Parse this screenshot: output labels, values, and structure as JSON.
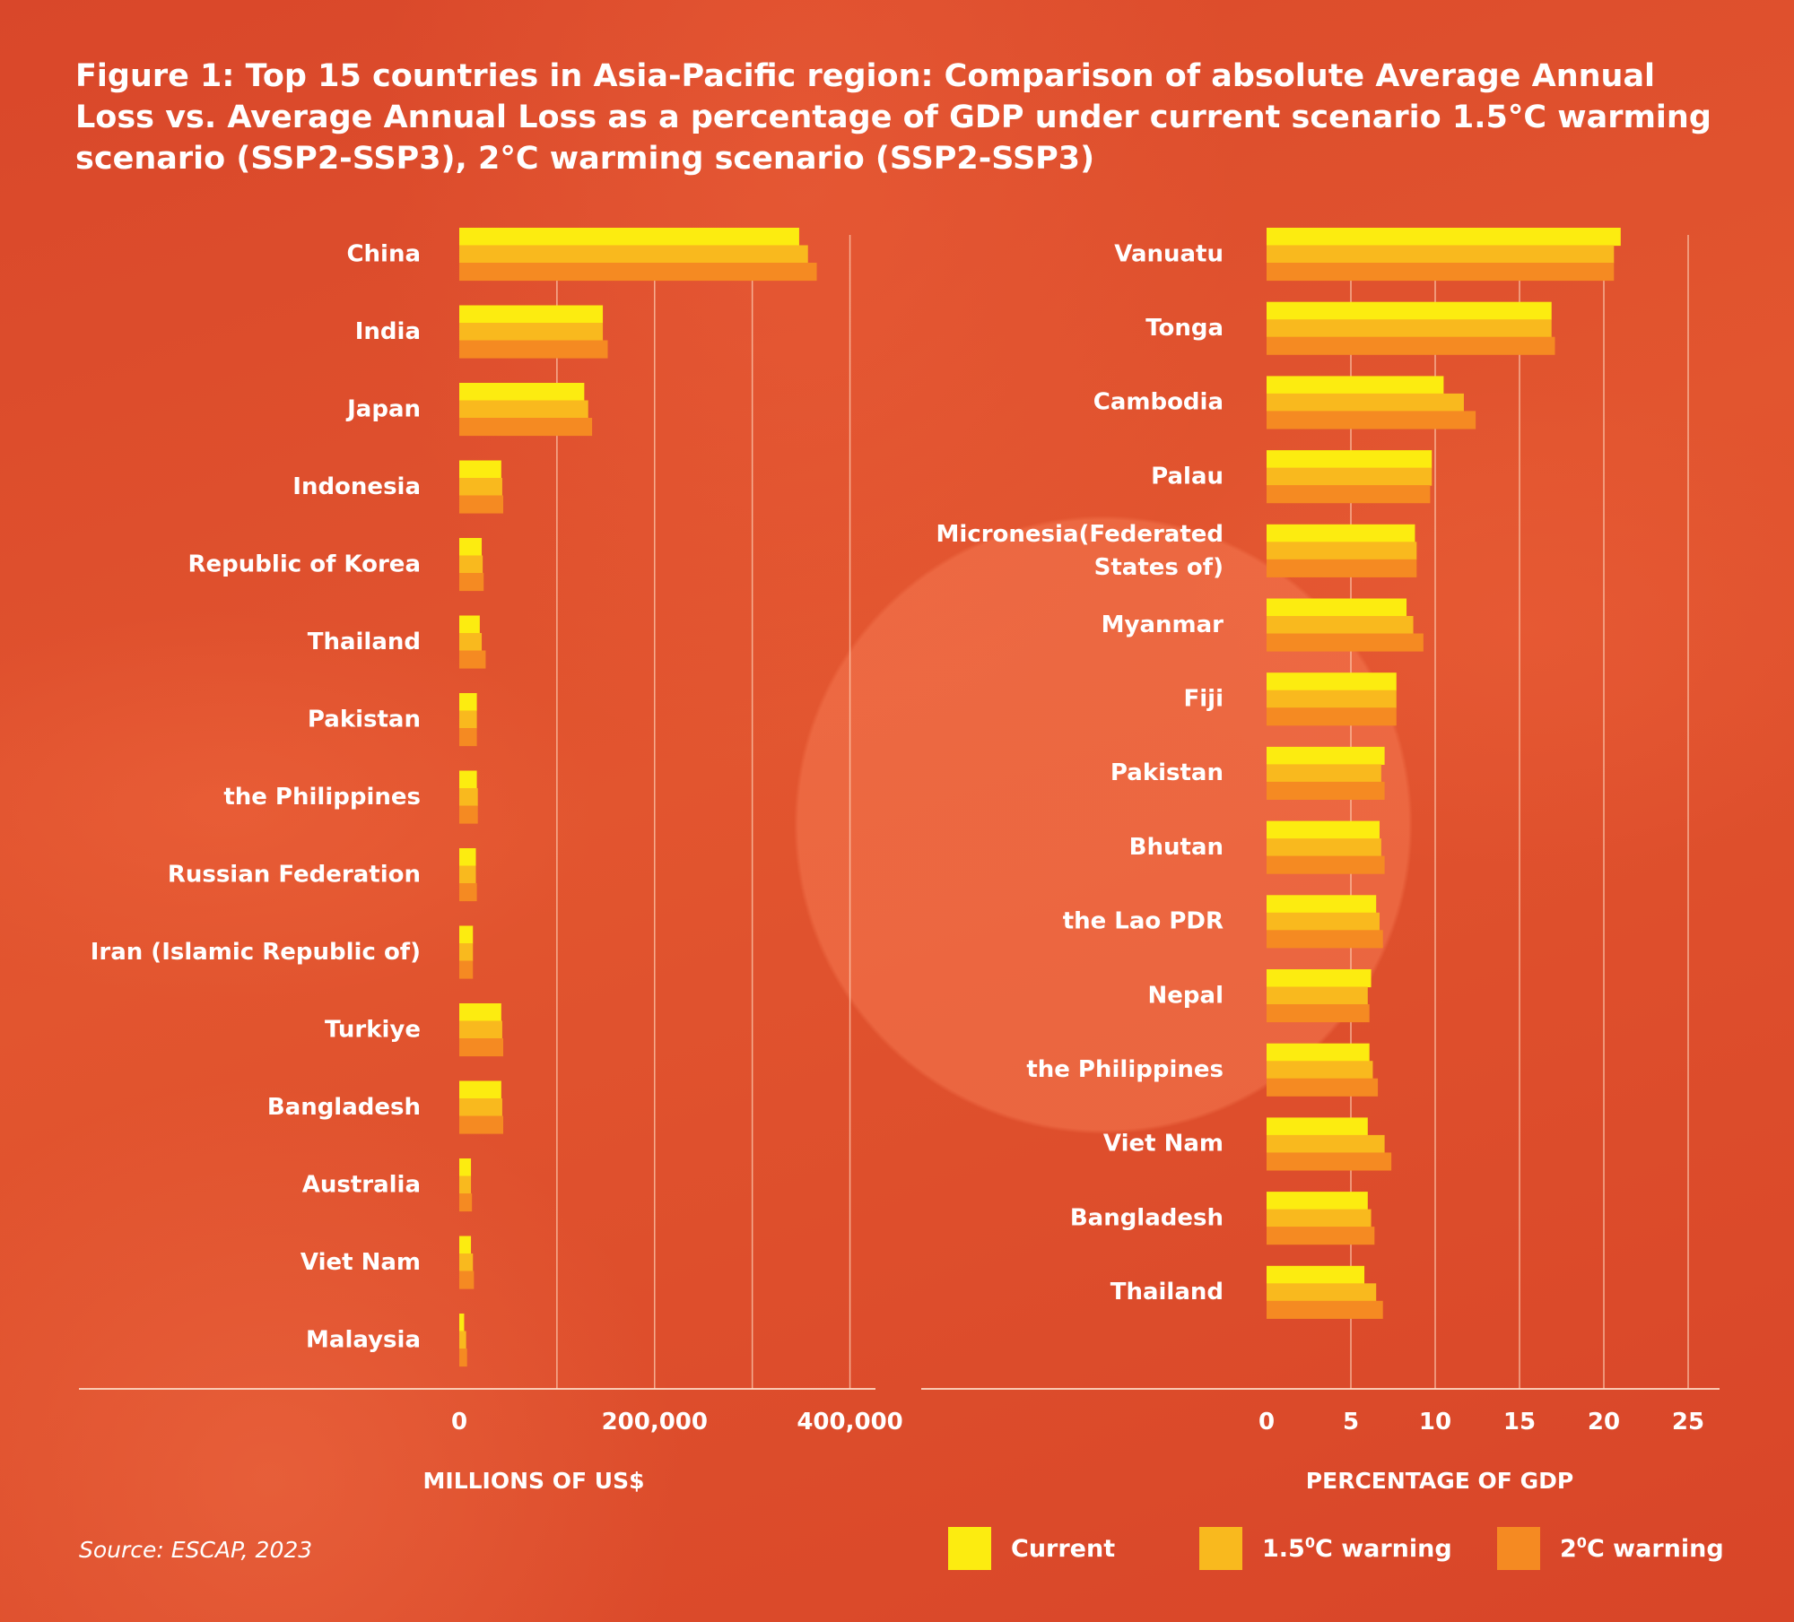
{
  "title": "Figure 1: Top 15 countries in Asia-Pacific region: Comparison of absolute Average Annual Loss vs. Average Annual Loss as a percentage of GDP under current scenario 1.5°C warming scenario (SSP2-SSP3), 2°C warming scenario (SSP2-SSP3)",
  "source": "Source: ESCAP, 2023",
  "colors": {
    "current": "#fcec10",
    "warm15": "#f9b91e",
    "warm2": "#f58a22"
  },
  "legend": [
    {
      "label_main": "Current",
      "label_sup": "",
      "label_rest": ""
    },
    {
      "label_main": "1.5",
      "label_sup": "0",
      "label_rest": "C warning"
    },
    {
      "label_main": "2",
      "label_sup": "0",
      "label_rest": "C warning"
    }
  ],
  "chart_data": [
    {
      "type": "bar",
      "orientation": "horizontal",
      "xlabel": "MILLIONS OF US$",
      "xlim": [
        0,
        450000
      ],
      "ticks": [
        0,
        200000,
        400000
      ],
      "tick_labels": [
        "0",
        "200,000",
        "400,000"
      ],
      "gridlines": [
        100000,
        200000,
        300000,
        400000
      ],
      "categories": [
        "China",
        "India",
        "Japan",
        "Indonesia",
        "Republic of Korea",
        "Thailand",
        "Pakistan",
        "the Philippines",
        "Russian Federation",
        "Iran (Islamic Republic of)",
        "Turkiye",
        "Bangladesh",
        "Australia",
        "Viet Nam",
        "Malaysia"
      ],
      "series": [
        {
          "name": "Current",
          "values": [
            348000,
            147000,
            128000,
            43000,
            23000,
            21000,
            18000,
            18000,
            17000,
            14000,
            43000,
            43000,
            12000,
            12000,
            5000
          ]
        },
        {
          "name": "1.5°C warning",
          "values": [
            357000,
            147000,
            132000,
            44000,
            24000,
            23000,
            18000,
            19000,
            17000,
            14000,
            44000,
            44000,
            12000,
            14000,
            7000
          ]
        },
        {
          "name": "2°C warning",
          "values": [
            366000,
            152000,
            136000,
            45000,
            25000,
            27000,
            18000,
            19000,
            18000,
            14000,
            45000,
            45000,
            13000,
            15000,
            8000
          ]
        }
      ]
    },
    {
      "type": "bar",
      "orientation": "horizontal",
      "xlabel": "PERCENTAGE OF GDP",
      "xlim": [
        0,
        25
      ],
      "ticks": [
        0,
        5,
        10,
        15,
        20,
        25
      ],
      "tick_labels": [
        "0",
        "5",
        "10",
        "15",
        "20",
        "25"
      ],
      "gridlines": [
        5,
        10,
        15,
        20,
        25
      ],
      "categories": [
        "Vanuatu",
        "Tonga",
        "Cambodia",
        "Palau",
        "Micronesia(Federated States of)",
        "Myanmar",
        "Fiji",
        "Pakistan",
        "Bhutan",
        "the Lao PDR",
        "Nepal",
        "the Philippines",
        "Viet Nam",
        "Bangladesh",
        "Thailand"
      ],
      "category_lines": [
        [
          "Vanuatu"
        ],
        [
          "Tonga"
        ],
        [
          "Cambodia"
        ],
        [
          "Palau"
        ],
        [
          "Micronesia(Federated",
          "States of)"
        ],
        [
          "Myanmar"
        ],
        [
          "Fiji"
        ],
        [
          "Pakistan"
        ],
        [
          "Bhutan"
        ],
        [
          "the Lao PDR"
        ],
        [
          "Nepal"
        ],
        [
          "the Philippines"
        ],
        [
          "Viet Nam"
        ],
        [
          "Bangladesh"
        ],
        [
          "Thailand"
        ]
      ],
      "series": [
        {
          "name": "Current",
          "values": [
            21.0,
            16.9,
            10.5,
            9.8,
            8.8,
            8.3,
            7.7,
            7.0,
            6.7,
            6.5,
            6.2,
            6.1,
            6.0,
            6.0,
            5.8
          ]
        },
        {
          "name": "1.5°C warning",
          "values": [
            20.6,
            16.9,
            11.7,
            9.8,
            8.9,
            8.7,
            7.7,
            6.8,
            6.8,
            6.7,
            6.0,
            6.3,
            7.0,
            6.2,
            6.5
          ]
        },
        {
          "name": "2°C warning",
          "values": [
            20.6,
            17.1,
            12.4,
            9.7,
            8.9,
            9.3,
            7.7,
            7.0,
            7.0,
            6.9,
            6.1,
            6.6,
            7.4,
            6.4,
            6.9
          ]
        }
      ]
    }
  ]
}
